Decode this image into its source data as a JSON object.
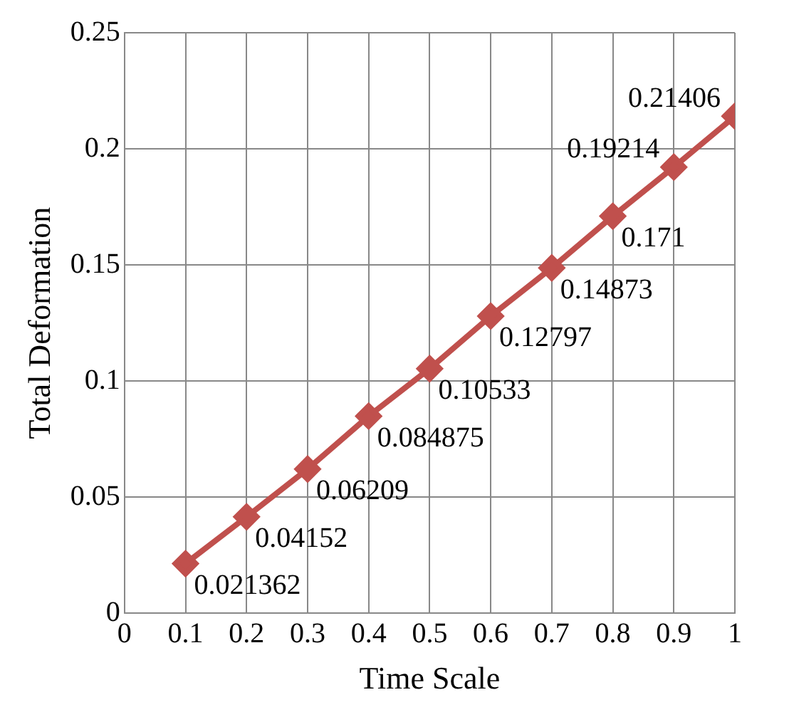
{
  "chart_data": {
    "type": "line",
    "xlabel": "Time Scale",
    "ylabel": "Total Deformation",
    "x": [
      0.1,
      0.2,
      0.3,
      0.4,
      0.5,
      0.6,
      0.7,
      0.8,
      0.9,
      1
    ],
    "series": [
      {
        "color": "#c0504d",
        "values": [
          0.021362,
          0.04152,
          0.06209,
          0.084875,
          0.10533,
          0.12797,
          0.14873,
          0.171,
          0.19214,
          0.21406
        ]
      }
    ],
    "xlim": [
      0,
      1
    ],
    "xticks": [
      0,
      0.1,
      0.2,
      0.3,
      0.4,
      0.5,
      0.6,
      0.7,
      0.8,
      0.9,
      1
    ],
    "ylim": [
      0,
      0.25
    ],
    "yticks": [
      0,
      0.05,
      0.1,
      0.15,
      0.2,
      0.25
    ],
    "grid": true,
    "legend": false,
    "marker": "diamond",
    "line_style": "solid",
    "data_labels": true
  }
}
